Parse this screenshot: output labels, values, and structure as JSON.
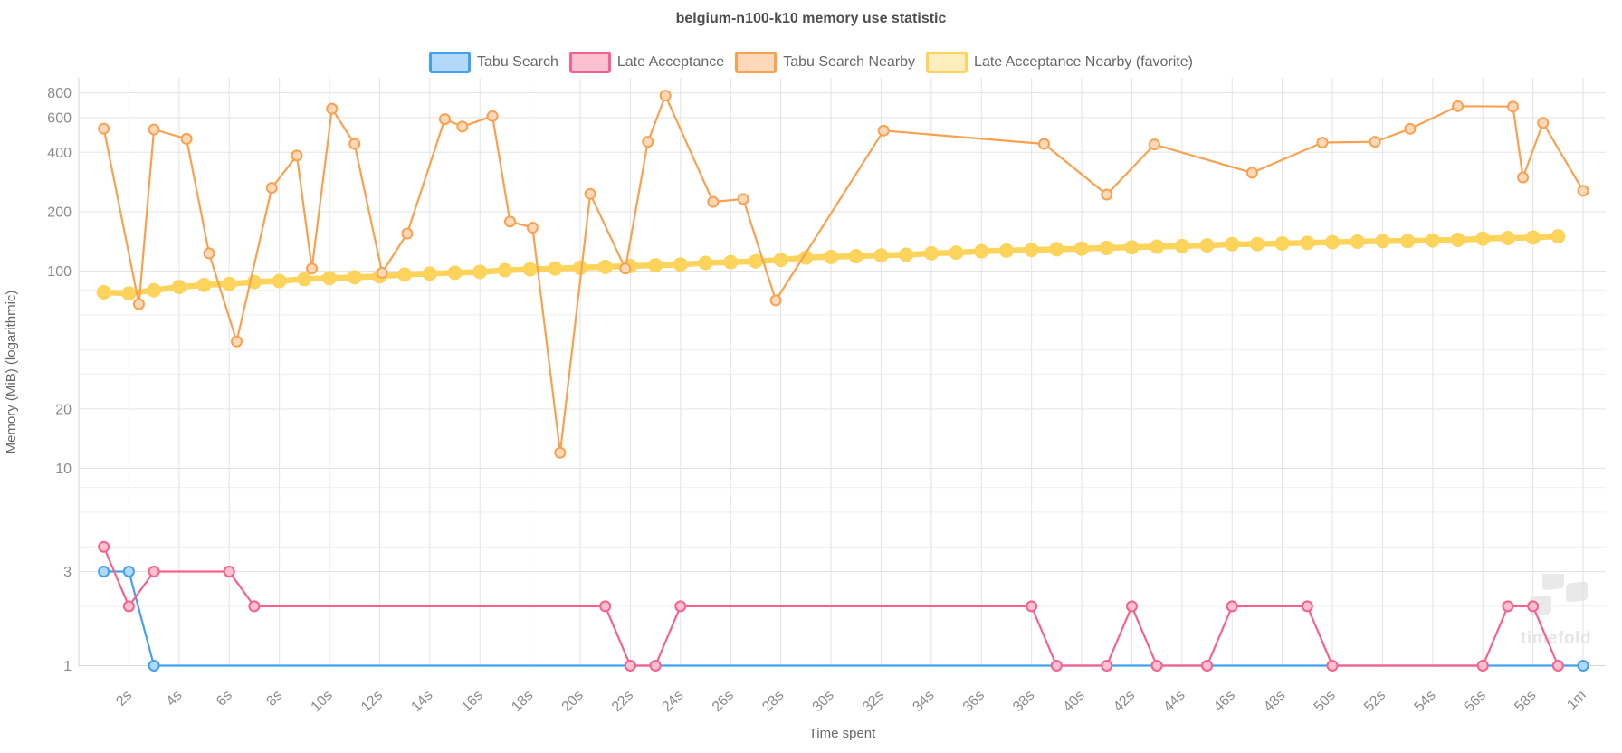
{
  "title": "belgium-n100-k10 memory use statistic",
  "watermark_text": "timefold",
  "y_axis": {
    "label": "Memory (MiB) (logarithmic)",
    "labeled_ticks": [
      {
        "value": 800,
        "label": "800"
      },
      {
        "value": 600,
        "label": "600"
      },
      {
        "value": 400,
        "label": "400"
      },
      {
        "value": 200,
        "label": "200"
      },
      {
        "value": 100,
        "label": "100"
      },
      {
        "value": 20,
        "label": "20"
      },
      {
        "value": 10,
        "label": "10"
      },
      {
        "value": 3,
        "label": "3"
      },
      {
        "value": 1,
        "label": "1"
      }
    ],
    "minor_ticks": [
      80,
      60,
      40,
      30,
      8,
      6,
      4,
      2
    ],
    "min": 1,
    "max": 950,
    "scale": "logarithmic"
  },
  "x_axis": {
    "label": "Time spent",
    "unit": "seconds",
    "tick_labels": [
      "2s",
      "4s",
      "6s",
      "8s",
      "10s",
      "12s",
      "14s",
      "16s",
      "18s",
      "20s",
      "22s",
      "24s",
      "26s",
      "28s",
      "30s",
      "32s",
      "34s",
      "36s",
      "38s",
      "40s",
      "42s",
      "44s",
      "46s",
      "48s",
      "50s",
      "52s",
      "54s",
      "56s",
      "58s",
      "1m"
    ],
    "tick_values_seconds": [
      2,
      4,
      6,
      8,
      10,
      12,
      14,
      16,
      18,
      20,
      22,
      24,
      26,
      28,
      30,
      32,
      34,
      36,
      38,
      40,
      42,
      44,
      46,
      48,
      50,
      52,
      54,
      56,
      58,
      60
    ],
    "min_seconds": 0,
    "max_seconds": 60.9,
    "grid": true
  },
  "colors": {
    "grid_major": "#e3e3e3",
    "grid_minor": "#efefef",
    "axis_border": "#d6d6d6",
    "title_text": "#4d4d4d",
    "tick_text": "#8b8b8b",
    "axis_label_text": "#666666",
    "watermark": "#e4e4e4"
  },
  "chart_data": {
    "type": "line",
    "title": "belgium-n100-k10 memory use statistic",
    "xlabel": "Time spent",
    "ylabel": "Memory (MiB) (logarithmic)",
    "x_unit": "seconds",
    "ylim": [
      1,
      950
    ],
    "legend_position": "top",
    "series": [
      {
        "name": "Tabu Search",
        "color": "#42a0f0",
        "emphasis": false,
        "points": [
          [
            1,
            3
          ],
          [
            2,
            3
          ],
          [
            3,
            1
          ],
          [
            60,
            1
          ]
        ]
      },
      {
        "name": "Late Acceptance",
        "color": "#f8618c",
        "emphasis": false,
        "points": [
          [
            1,
            4
          ],
          [
            2,
            2
          ],
          [
            3,
            3
          ],
          [
            6,
            3
          ],
          [
            7,
            2
          ],
          [
            21,
            2
          ],
          [
            22,
            1
          ],
          [
            23,
            1
          ],
          [
            24,
            2
          ],
          [
            38,
            2
          ],
          [
            39,
            1
          ],
          [
            41,
            1
          ],
          [
            42,
            2
          ],
          [
            43,
            1
          ],
          [
            45,
            1
          ],
          [
            46,
            2
          ],
          [
            49,
            2
          ],
          [
            50,
            1
          ],
          [
            56,
            1
          ],
          [
            57,
            2
          ],
          [
            58,
            2
          ],
          [
            59,
            1
          ]
        ]
      },
      {
        "name": "Tabu Search Nearby",
        "color": "#f9a14f",
        "emphasis": false,
        "points": [
          [
            1,
            527
          ],
          [
            2.4,
            68
          ],
          [
            3,
            522
          ],
          [
            4.3,
            468
          ],
          [
            5.2,
            123
          ],
          [
            6.3,
            44
          ],
          [
            7.7,
            264
          ],
          [
            8.7,
            385
          ],
          [
            9.3,
            103
          ],
          [
            10.1,
            665
          ],
          [
            11,
            441
          ],
          [
            12.1,
            98
          ],
          [
            13.1,
            155
          ],
          [
            14.6,
            589
          ],
          [
            15.3,
            540
          ],
          [
            16.5,
            610
          ],
          [
            17.2,
            178
          ],
          [
            18.1,
            166
          ],
          [
            19.2,
            12
          ],
          [
            20.4,
            246
          ],
          [
            21.8,
            103
          ],
          [
            22.7,
            452
          ],
          [
            23.4,
            775
          ],
          [
            25.3,
            224
          ],
          [
            26.5,
            232
          ],
          [
            27.8,
            71
          ],
          [
            32.1,
            515
          ],
          [
            38.5,
            441
          ],
          [
            41,
            244
          ],
          [
            42.9,
            438
          ],
          [
            46.8,
            315
          ],
          [
            49.6,
            448
          ],
          [
            51.7,
            452
          ],
          [
            53.1,
            526
          ],
          [
            55,
            685
          ],
          [
            57.2,
            682
          ],
          [
            57.6,
            298
          ],
          [
            58.4,
            564
          ],
          [
            60,
            255
          ]
        ]
      },
      {
        "name": "Late Acceptance Nearby (favorite)",
        "color": "#fcd45c",
        "emphasis": true,
        "points": [
          [
            1,
            78
          ],
          [
            2,
            77
          ],
          [
            3,
            80
          ],
          [
            4,
            83
          ],
          [
            5,
            85
          ],
          [
            6,
            86
          ],
          [
            7,
            88
          ],
          [
            8,
            89
          ],
          [
            9,
            91
          ],
          [
            10,
            92
          ],
          [
            11,
            93
          ],
          [
            12,
            94
          ],
          [
            13,
            96
          ],
          [
            14,
            97
          ],
          [
            15,
            98
          ],
          [
            16,
            99
          ],
          [
            17,
            101
          ],
          [
            18,
            102
          ],
          [
            19,
            103
          ],
          [
            20,
            104
          ],
          [
            21,
            105
          ],
          [
            22,
            106
          ],
          [
            23,
            107
          ],
          [
            24,
            108
          ],
          [
            25,
            110
          ],
          [
            26,
            111
          ],
          [
            27,
            112
          ],
          [
            28,
            114
          ],
          [
            29,
            117
          ],
          [
            30,
            118
          ],
          [
            31,
            119
          ],
          [
            32,
            120
          ],
          [
            33,
            121
          ],
          [
            34,
            123
          ],
          [
            35,
            124
          ],
          [
            36,
            126
          ],
          [
            37,
            127
          ],
          [
            38,
            128
          ],
          [
            39,
            129
          ],
          [
            40,
            130
          ],
          [
            41,
            131
          ],
          [
            42,
            132
          ],
          [
            43,
            133
          ],
          [
            44,
            134
          ],
          [
            45,
            135
          ],
          [
            46,
            137
          ],
          [
            47,
            137
          ],
          [
            48,
            138
          ],
          [
            49,
            139
          ],
          [
            50,
            140
          ],
          [
            51,
            141
          ],
          [
            52,
            142
          ],
          [
            53,
            142
          ],
          [
            54,
            143
          ],
          [
            55,
            144
          ],
          [
            56,
            146
          ],
          [
            57,
            147
          ],
          [
            58,
            148
          ],
          [
            59,
            150
          ]
        ]
      }
    ]
  }
}
